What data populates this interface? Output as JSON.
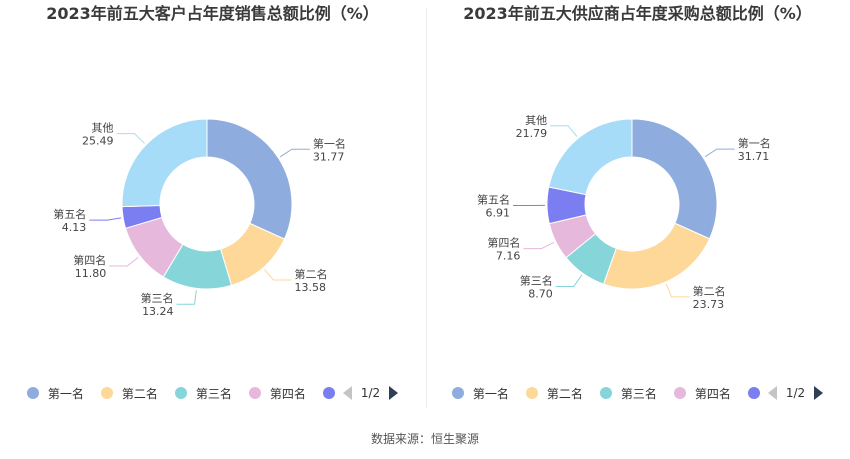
{
  "footer": {
    "source": "数据来源：恒生聚源"
  },
  "charts": [
    {
      "title": "2023年前五大客户占年度销售总额比例（%）",
      "pager": "1/2",
      "chart_data": {
        "type": "pie",
        "title": "2023年前五大客户占年度销售总额比例（%）",
        "categories": [
          "第一名",
          "第二名",
          "第三名",
          "第四名",
          "第五名",
          "其他"
        ],
        "values": [
          31.77,
          13.58,
          13.24,
          11.8,
          4.13,
          25.49
        ],
        "value_labels": [
          "31.77",
          "13.58",
          "13.24",
          "11.80",
          "4.13",
          "25.49"
        ],
        "colors": [
          "#8eadde",
          "#fdd899",
          "#85d5d9",
          "#e6b8dc",
          "#7b7ef0",
          "#a6dcf7"
        ],
        "legend_visible": [
          "第一名",
          "第二名",
          "第三名",
          "第四名"
        ],
        "legend_placement": "bottom"
      }
    },
    {
      "title": "2023年前五大供应商占年度采购总额比例（%）",
      "pager": "1/2",
      "chart_data": {
        "type": "pie",
        "title": "2023年前五大供应商占年度采购总额比例（%）",
        "categories": [
          "第一名",
          "第二名",
          "第三名",
          "第四名",
          "第五名",
          "其他"
        ],
        "values": [
          31.71,
          23.73,
          8.7,
          7.16,
          6.91,
          21.79
        ],
        "value_labels": [
          "31.71",
          "23.73",
          "8.70",
          "7.16",
          "6.91",
          "21.79"
        ],
        "colors": [
          "#8eadde",
          "#fdd899",
          "#85d5d9",
          "#e6b8dc",
          "#7b7ef0",
          "#a6dcf7"
        ],
        "legend_visible": [
          "第一名",
          "第二名",
          "第三名",
          "第四名"
        ],
        "legend_placement": "bottom"
      }
    }
  ]
}
